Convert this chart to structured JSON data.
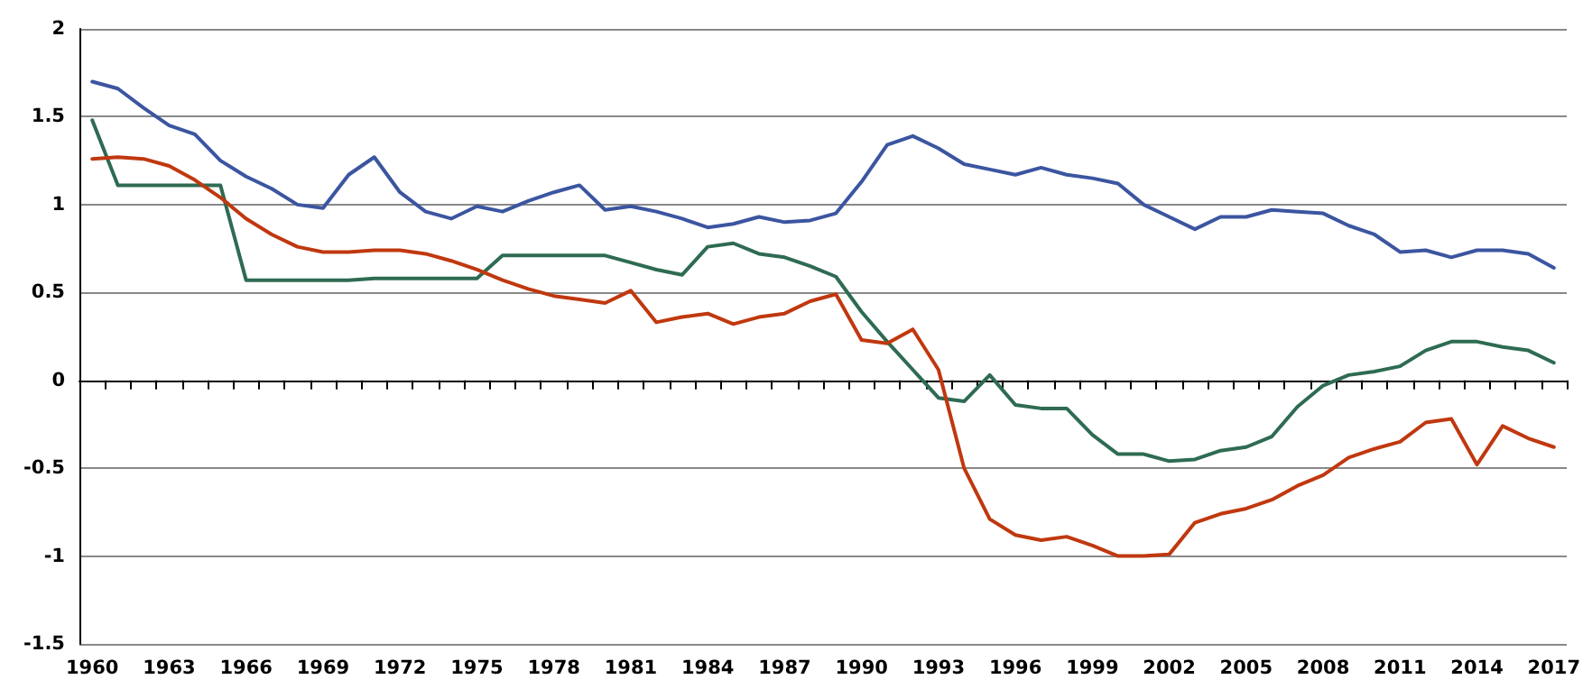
{
  "chart_data": {
    "type": "line",
    "categories": [
      "1960",
      null,
      null,
      "1963",
      null,
      null,
      "1966",
      null,
      null,
      "1969",
      null,
      null,
      "1972",
      null,
      null,
      "1975",
      null,
      null,
      "1978",
      null,
      null,
      "1981",
      null,
      null,
      "1984",
      null,
      null,
      "1987",
      null,
      null,
      "1990",
      null,
      null,
      "1993",
      null,
      null,
      "1996",
      null,
      null,
      "1999",
      null,
      null,
      "2002",
      null,
      null,
      "2005",
      null,
      null,
      "2008",
      null,
      null,
      "2011",
      null,
      null,
      "2014",
      null,
      null,
      "2017"
    ],
    "series": [
      {
        "color": "#3b55a0",
        "values": [
          1.7,
          1.66,
          1.55,
          1.45,
          1.4,
          1.25,
          1.16,
          1.09,
          1.0,
          0.98,
          1.17,
          1.27,
          1.07,
          0.96,
          0.92,
          0.99,
          0.96,
          1.02,
          1.07,
          1.11,
          0.97,
          0.99,
          0.96,
          0.92,
          0.87,
          0.89,
          0.93,
          0.9,
          0.91,
          0.95,
          1.13,
          1.34,
          1.39,
          1.32,
          1.23,
          1.2,
          1.17,
          1.21,
          1.17,
          1.15,
          1.12,
          1.0,
          0.93,
          0.86,
          0.93,
          0.93,
          0.97,
          0.96,
          0.95,
          0.88,
          0.83,
          0.73,
          0.74,
          0.7,
          0.74,
          0.74,
          0.72,
          0.64
        ]
      },
      {
        "color": "#2e6b52",
        "values": [
          1.48,
          1.11,
          1.11,
          1.11,
          1.11,
          1.11,
          0.57,
          0.57,
          0.57,
          0.57,
          0.57,
          0.58,
          0.58,
          0.58,
          0.58,
          0.58,
          0.71,
          0.71,
          0.71,
          0.71,
          0.71,
          0.67,
          0.63,
          0.6,
          0.76,
          0.78,
          0.72,
          0.7,
          0.65,
          0.59,
          0.39,
          0.22,
          0.06,
          -0.1,
          -0.12,
          0.03,
          -0.14,
          -0.16,
          -0.16,
          -0.31,
          -0.42,
          -0.42,
          -0.46,
          -0.45,
          -0.4,
          -0.38,
          -0.32,
          -0.15,
          -0.03,
          0.03,
          0.05,
          0.08,
          0.17,
          0.22,
          0.22,
          0.19,
          0.17,
          0.1
        ]
      },
      {
        "color": "#c0380f",
        "values": [
          1.26,
          1.27,
          1.26,
          1.22,
          1.14,
          1.04,
          0.92,
          0.83,
          0.76,
          0.73,
          0.73,
          0.74,
          0.74,
          0.72,
          0.68,
          0.63,
          0.57,
          0.52,
          0.48,
          0.46,
          0.44,
          0.51,
          0.33,
          0.36,
          0.38,
          0.32,
          0.36,
          0.38,
          0.45,
          0.49,
          0.23,
          0.21,
          0.29,
          0.06,
          -0.5,
          -0.79,
          -0.88,
          -0.91,
          -0.89,
          -0.94,
          -1.0,
          -1.0,
          -0.99,
          -0.81,
          -0.76,
          -0.73,
          -0.68,
          -0.6,
          -0.54,
          -0.44,
          -0.39,
          -0.35,
          -0.24,
          -0.22,
          -0.48,
          -0.26,
          -0.33,
          -0.38
        ]
      }
    ],
    "ylim": [
      -1.5,
      2
    ],
    "yticks": [
      -1.5,
      -1,
      -0.5,
      0,
      0.5,
      1,
      1.5,
      2
    ],
    "grid": "y",
    "marker": "none",
    "line_style": "solid"
  }
}
